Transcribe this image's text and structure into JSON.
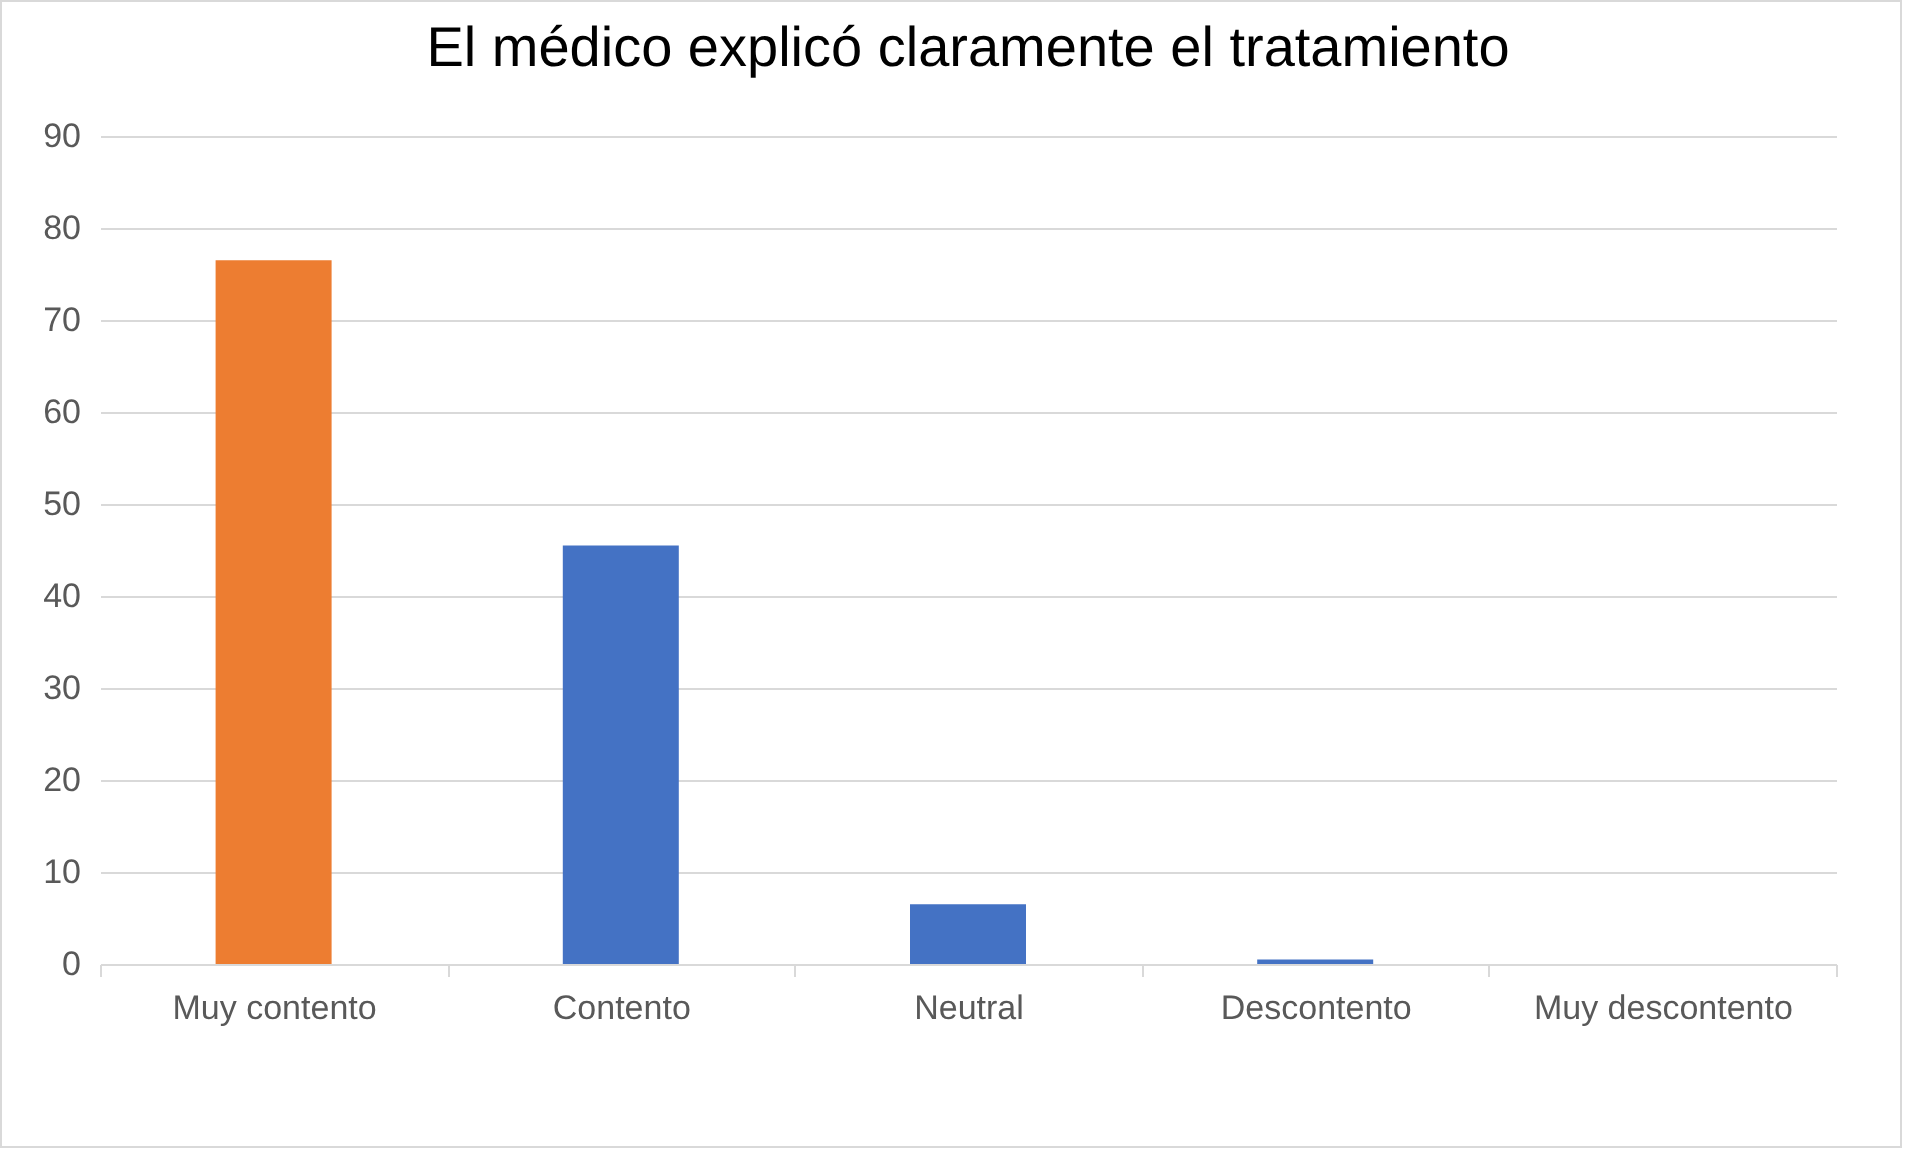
{
  "chart_data": {
    "type": "bar",
    "title": "El médico explicó claramente el tratamiento",
    "categories": [
      "Muy contento",
      "Contento",
      "Neutral",
      "Descontento",
      "Muy descontento"
    ],
    "values": [
      76.5,
      45.5,
      6.5,
      0.5,
      0
    ],
    "colors": [
      "#ed7d31",
      "#4472c4",
      "#4472c4",
      "#4472c4",
      "#4472c4"
    ],
    "ylim": [
      0,
      90
    ],
    "yticks": [
      0,
      10,
      20,
      30,
      40,
      50,
      60,
      70,
      80,
      90
    ],
    "grid": "y"
  }
}
